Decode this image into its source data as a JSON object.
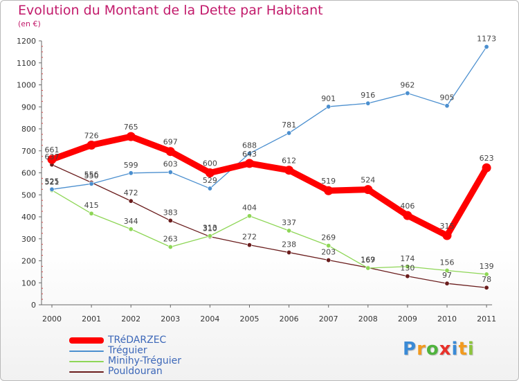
{
  "header": {
    "title": "Evolution du Montant de la Dette par Habitant",
    "subtitle": "(en €)"
  },
  "chart_data": {
    "type": "line",
    "x": [
      "2000",
      "2001",
      "2002",
      "2003",
      "2004",
      "2005",
      "2006",
      "2007",
      "2008",
      "2009",
      "2010",
      "2011"
    ],
    "ylim": [
      0,
      1200
    ],
    "yticks": [
      0,
      100,
      200,
      300,
      400,
      500,
      600,
      700,
      800,
      900,
      1000,
      1100,
      1200
    ],
    "grid": false,
    "legend_position": "bottom-left",
    "series": [
      {
        "name": "TRéDARZEC",
        "color": "#ff0000",
        "values": [
          661,
          726,
          765,
          697,
          600,
          643,
          612,
          519,
          524,
          406,
          315,
          623
        ]
      },
      {
        "name": "Tréguier",
        "color": "#4b8fcf",
        "values": [
          525,
          550,
          599,
          603,
          529,
          688,
          781,
          901,
          916,
          962,
          905,
          1173
        ]
      },
      {
        "name": "Minihy-Tréguier",
        "color": "#8ed656",
        "values": [
          521,
          415,
          344,
          263,
          313,
          404,
          337,
          269,
          167,
          174,
          156,
          139
        ]
      },
      {
        "name": "Pouldouran",
        "color": "#6a1d1d",
        "values": [
          637,
          556,
          472,
          383,
          310,
          272,
          238,
          203,
          169,
          130,
          97,
          78
        ]
      }
    ]
  },
  "logo": {
    "letters": [
      "P",
      "r",
      "o",
      "x",
      "i",
      "t",
      "i"
    ],
    "colors": [
      "#3a8ad6",
      "#f29a1f",
      "#4fb33d",
      "#e8312a",
      "#3a8ad6",
      "#f29a1f",
      "#8dc43d"
    ]
  }
}
